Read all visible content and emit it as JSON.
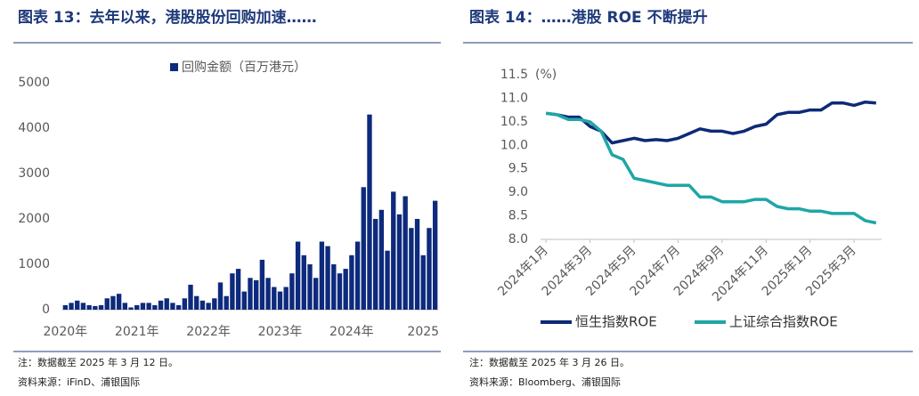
{
  "chart_data": [
    {
      "type": "bar",
      "title": "图表 13：去年以来，港股股份回购加速……",
      "categories": [
        "2020年",
        null,
        null,
        null,
        null,
        null,
        null,
        null,
        null,
        null,
        null,
        null,
        "2021年",
        null,
        null,
        null,
        null,
        null,
        null,
        null,
        null,
        null,
        null,
        null,
        "2022年",
        null,
        null,
        null,
        null,
        null,
        null,
        null,
        null,
        null,
        null,
        null,
        "2023年",
        null,
        null,
        null,
        null,
        null,
        null,
        null,
        null,
        null,
        null,
        null,
        "2024年",
        null,
        null,
        null,
        null,
        null,
        null,
        null,
        null,
        null,
        null,
        null,
        "2025",
        null,
        null
      ],
      "series": [
        {
          "name": "回购金额（百万港元）",
          "color": "#0d2a7c",
          "values": [
            100,
            150,
            200,
            150,
            100,
            80,
            100,
            250,
            300,
            350,
            150,
            50,
            100,
            150,
            150,
            100,
            200,
            250,
            150,
            100,
            250,
            550,
            300,
            200,
            150,
            250,
            600,
            300,
            800,
            900,
            400,
            700,
            650,
            1100,
            700,
            500,
            400,
            500,
            800,
            1500,
            1200,
            1000,
            700,
            1500,
            1400,
            1000,
            800,
            900,
            1200,
            1500,
            2700,
            4300,
            2000,
            2200,
            1300,
            2600,
            2100,
            2500,
            1800,
            2000,
            1200,
            1800,
            2400
          ]
        }
      ],
      "ylim": [
        0,
        5000
      ],
      "yticks": [
        0,
        1000,
        2000,
        3000,
        4000,
        5000
      ],
      "grid": false,
      "legend": "top",
      "note": "注：数据截至 2025 年 3 月 12 日。",
      "source": "资料来源：iFinD、浦银国际"
    },
    {
      "type": "line",
      "title": "图表 14：……港股 ROE 不断提升",
      "y_label": "(%)",
      "categories": [
        "2024年1月",
        null,
        null,
        null,
        "2024年3月",
        null,
        null,
        null,
        "2024年5月",
        null,
        null,
        null,
        "2024年7月",
        null,
        null,
        null,
        "2024年9月",
        null,
        null,
        null,
        "2024年11月",
        null,
        null,
        null,
        "2025年1月",
        null,
        null,
        null,
        "2025年3月",
        null,
        null
      ],
      "series": [
        {
          "name": "恒生指数ROE",
          "color": "#0c2a78",
          "values": [
            10.68,
            10.65,
            10.6,
            10.6,
            10.4,
            10.3,
            10.05,
            10.1,
            10.15,
            10.1,
            10.12,
            10.1,
            10.15,
            10.25,
            10.35,
            10.3,
            10.3,
            10.25,
            10.3,
            10.4,
            10.45,
            10.65,
            10.7,
            10.7,
            10.75,
            10.75,
            10.9,
            10.9,
            10.85,
            10.92,
            10.9
          ]
        },
        {
          "name": "上证综合指数ROE",
          "color": "#1fa6a6",
          "values": [
            10.68,
            10.65,
            10.55,
            10.55,
            10.5,
            10.3,
            9.8,
            9.7,
            9.3,
            9.25,
            9.2,
            9.15,
            9.15,
            9.15,
            8.9,
            8.9,
            8.8,
            8.8,
            8.8,
            8.85,
            8.85,
            8.7,
            8.65,
            8.65,
            8.6,
            8.6,
            8.55,
            8.55,
            8.55,
            8.4,
            8.35
          ]
        }
      ],
      "ylim": [
        8,
        11.5
      ],
      "yticks": [
        {
          "value": 8,
          "label": "8.0"
        },
        8.5,
        {
          "value": 9,
          "label": "9.0"
        },
        9.5,
        {
          "value": 10,
          "label": "10.0"
        },
        10.5,
        {
          "value": 11,
          "label": "11.0"
        },
        11.5
      ],
      "grid": false,
      "legend": "bottom",
      "note": "注：数据截至 2025 年 3 月 26 日。",
      "source": "资料来源：Bloomberg、浦银国际"
    }
  ]
}
